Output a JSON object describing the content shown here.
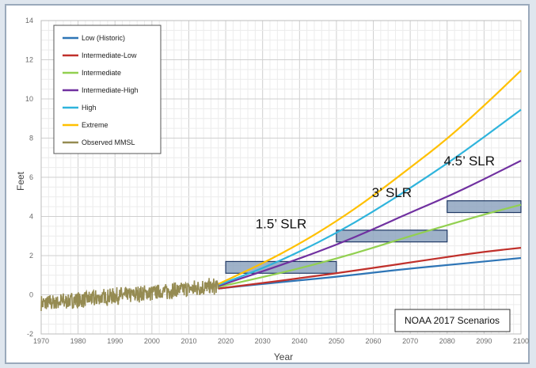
{
  "chart_data": {
    "type": "line",
    "title": "",
    "xlabel": "Year",
    "ylabel": "Feet",
    "xlim": [
      1970,
      2100
    ],
    "ylim": [
      -2,
      14
    ],
    "x_ticks": [
      1970,
      1980,
      1990,
      2000,
      2010,
      2020,
      2030,
      2040,
      2050,
      2060,
      2070,
      2080,
      2090,
      2100
    ],
    "y_ticks": [
      -2,
      0,
      2,
      4,
      6,
      8,
      10,
      12,
      14
    ],
    "grid": true,
    "legend_position": "top-left",
    "x": [
      2018,
      2030,
      2040,
      2050,
      2060,
      2070,
      2080,
      2090,
      2100
    ],
    "series": [
      {
        "name": "Low (Historic)",
        "color": "#2e75b6",
        "values": [
          0.32,
          0.55,
          0.74,
          0.92,
          1.13,
          1.34,
          1.52,
          1.7,
          1.88
        ]
      },
      {
        "name": "Intermediate-Low",
        "color": "#c0302b",
        "values": [
          0.32,
          0.6,
          0.85,
          1.1,
          1.37,
          1.65,
          1.93,
          2.2,
          2.4
        ]
      },
      {
        "name": "Intermediate",
        "color": "#92d050",
        "values": [
          0.4,
          0.9,
          1.35,
          1.85,
          2.4,
          3.0,
          3.55,
          4.1,
          4.6
        ]
      },
      {
        "name": "Intermediate-High",
        "color": "#7030a0",
        "values": [
          0.45,
          1.2,
          1.85,
          2.55,
          3.35,
          4.2,
          5.0,
          5.9,
          6.85
        ]
      },
      {
        "name": "High",
        "color": "#2fb4dc",
        "values": [
          0.5,
          1.35,
          2.2,
          3.15,
          4.25,
          5.45,
          6.7,
          8.05,
          9.45
        ]
      },
      {
        "name": "Extreme",
        "color": "#ffc000",
        "values": [
          0.55,
          1.6,
          2.6,
          3.75,
          5.05,
          6.5,
          7.95,
          9.65,
          11.45
        ]
      }
    ],
    "observed": {
      "name": "Observed MMSL",
      "color": "#958b52",
      "x_start": 1970,
      "x_end": 2018,
      "trend_start": -0.45,
      "trend_end": 0.45,
      "noise_amplitude": 0.38
    },
    "slr_boxes": [
      {
        "label": "1.5’ SLR",
        "x_start": 2020,
        "x_end": 2050,
        "y_low": 1.1,
        "y_high": 1.7
      },
      {
        "label": "3’ SLR",
        "x_start": 2050,
        "x_end": 2080,
        "y_low": 2.7,
        "y_high": 3.3
      },
      {
        "label": "4.5’ SLR",
        "x_start": 2080,
        "x_end": 2100,
        "y_low": 4.2,
        "y_high": 4.8
      }
    ],
    "box_fill": "#8ea4c0",
    "box_stroke": "#1f3864",
    "scenario_label": "NOAA 2017 Scenarios"
  }
}
